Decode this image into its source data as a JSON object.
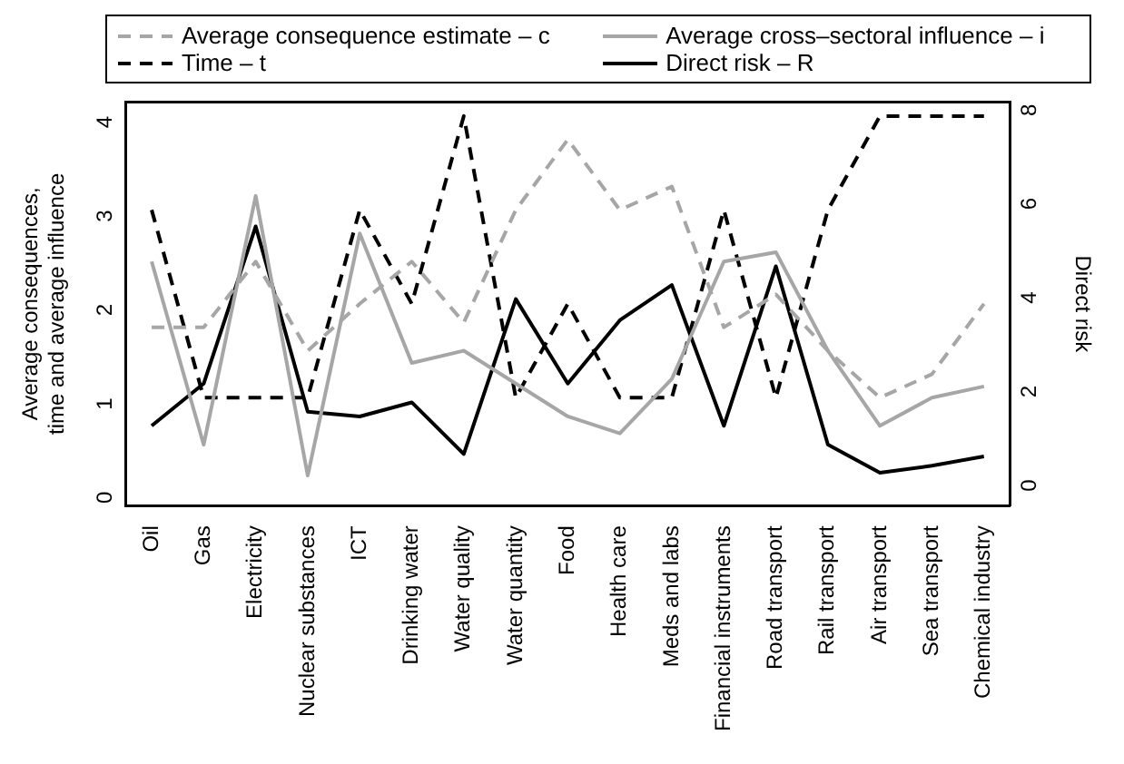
{
  "chart_data": {
    "type": "line",
    "ylabel": "Average consequences, time and average influence",
    "y2label": "Direct risk",
    "categories": [
      "Oil",
      "Gas",
      "Electricity",
      "Nuclear substances",
      "ICT",
      "Drinking water",
      "Water quality",
      "Water quantity",
      "Food",
      "Health care",
      "Meds and labs",
      "Financial instruments",
      "Road transport",
      "Rail transport",
      "Air transport",
      "Sea transport",
      "Chemical industry"
    ],
    "series": [
      {
        "name": "Average consequence estimate – c",
        "color": "#a6a6a6",
        "line_style": "dashed",
        "values": [
          1.75,
          1.75,
          2.45,
          1.5,
          2,
          2.45,
          1.8,
          3,
          3.75,
          3,
          3.25,
          1.75,
          2.1,
          1.5,
          1,
          1.25,
          2
        ]
      },
      {
        "name": "Average cross–sectoral influence – i",
        "color": "#a6a6a6",
        "line_style": "solid",
        "values": [
          2.45,
          0.5,
          3.15,
          0.17,
          2.75,
          1.37,
          1.5,
          1.15,
          0.8,
          0.62,
          1.2,
          2.45,
          2.55,
          1.5,
          0.7,
          1,
          1.12
        ]
      },
      {
        "name": "Time – t",
        "color": "#000000",
        "line_style": "dashed",
        "values": [
          3,
          1,
          1,
          1,
          3,
          2,
          4,
          1,
          2,
          1,
          1,
          3,
          1,
          3,
          4,
          4,
          4
        ]
      },
      {
        "name": "Direct risk – R",
        "color": "#000000",
        "line_style": "solid",
        "axis": "y2",
        "values": [
          1.4,
          2.3,
          5.65,
          1.7,
          1.6,
          1.9,
          0.8,
          4.1,
          2.3,
          3.65,
          4.4,
          1.4,
          4.8,
          1,
          0.4,
          0.55,
          0.75
        ]
      }
    ],
    "ylim": [
      -0.15,
      4.15
    ],
    "yticks": [
      0,
      1,
      2,
      3,
      4
    ],
    "y2lim": [
      -0.3,
      8.3
    ],
    "y2ticks": [
      0,
      2,
      4,
      6,
      8
    ],
    "grid": false,
    "legend": "top",
    "marker": "none"
  }
}
